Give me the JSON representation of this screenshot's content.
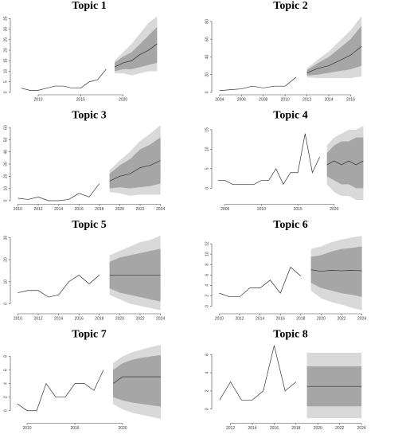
{
  "chart_data": [
    {
      "type": "forecast",
      "title": "Topic 1",
      "xlim": [
        2007,
        2025
      ],
      "xticks": [
        2010,
        2015,
        2020
      ],
      "ylim": [
        0,
        37
      ],
      "yticks": [
        0,
        5,
        10,
        15,
        20,
        25,
        30,
        35
      ],
      "line_color": "#333333",
      "band80_color": "#a6a6a6",
      "band95_color": "#d9d9d9",
      "observed": {
        "x": [
          2008,
          2009,
          2010,
          2011,
          2012,
          2013,
          2014,
          2015,
          2016,
          2017,
          2018
        ],
        "values": [
          2,
          1,
          1,
          2,
          3,
          3,
          2,
          2,
          5,
          6,
          11
        ]
      },
      "forecast": {
        "x": [
          2019,
          2020,
          2021,
          2022,
          2023,
          2024
        ],
        "mean": [
          12,
          14,
          15,
          18,
          20,
          23
        ],
        "lo80": [
          10,
          11,
          11,
          12,
          13,
          14
        ],
        "hi80": [
          14,
          17,
          19,
          23,
          27,
          31
        ],
        "lo95": [
          9,
          9,
          8,
          9,
          10,
          10
        ],
        "hi95": [
          15,
          19,
          23,
          28,
          33,
          36
        ]
      }
    },
    {
      "type": "forecast",
      "title": "Topic 2",
      "xlim": [
        2003.5,
        2017.5
      ],
      "xticks": [
        2004,
        2006,
        2008,
        2010,
        2012,
        2014,
        2016
      ],
      "ylim": [
        0,
        88
      ],
      "yticks": [
        0,
        20,
        40,
        60,
        80
      ],
      "line_color": "#333333",
      "band80_color": "#a6a6a6",
      "band95_color": "#d9d9d9",
      "observed": {
        "x": [
          2004,
          2005,
          2006,
          2007,
          2008,
          2009,
          2010,
          2011
        ],
        "values": [
          2,
          3,
          4,
          7,
          5,
          7,
          7,
          17
        ]
      },
      "forecast": {
        "x": [
          2012,
          2013,
          2014,
          2015,
          2016,
          2017
        ],
        "mean": [
          22,
          27,
          30,
          36,
          42,
          52
        ],
        "lo80": [
          19,
          20,
          22,
          24,
          26,
          30
        ],
        "hi80": [
          25,
          33,
          40,
          50,
          60,
          75
        ],
        "lo95": [
          17,
          16,
          16,
          16,
          16,
          18
        ],
        "hi95": [
          27,
          37,
          46,
          58,
          70,
          86
        ]
      }
    },
    {
      "type": "forecast",
      "title": "Topic 3",
      "xlim": [
        2009.5,
        2024.5
      ],
      "xticks": [
        2010,
        2012,
        2014,
        2016,
        2018,
        2020,
        2022,
        2024
      ],
      "ylim": [
        -1,
        63
      ],
      "yticks": [
        0,
        10,
        20,
        30,
        40,
        50,
        60
      ],
      "line_color": "#333333",
      "band80_color": "#a6a6a6",
      "band95_color": "#d9d9d9",
      "observed": {
        "x": [
          2010,
          2011,
          2012,
          2013,
          2014,
          2015,
          2016,
          2017,
          2018
        ],
        "values": [
          2,
          1,
          3,
          0,
          0,
          1,
          6,
          3,
          14
        ]
      },
      "forecast": {
        "x": [
          2019,
          2020,
          2021,
          2022,
          2023,
          2024
        ],
        "mean": [
          16,
          20,
          22,
          27,
          29,
          33
        ],
        "lo80": [
          10,
          11,
          10,
          11,
          12,
          14
        ],
        "hi80": [
          22,
          29,
          34,
          42,
          46,
          52
        ],
        "lo95": [
          7,
          6,
          4,
          5,
          5,
          5
        ],
        "hi95": [
          25,
          33,
          40,
          49,
          55,
          62
        ]
      }
    },
    {
      "type": "forecast",
      "title": "Topic 4",
      "xlim": [
        2003.5,
        2024.5
      ],
      "xticks": [
        2005,
        2010,
        2015,
        2020
      ],
      "ylim": [
        -3.5,
        16.5
      ],
      "yticks": [
        0,
        5,
        10,
        15
      ],
      "line_color": "#333333",
      "band80_color": "#a6a6a6",
      "band95_color": "#d9d9d9",
      "observed": {
        "x": [
          2004,
          2005,
          2006,
          2007,
          2008,
          2009,
          2010,
          2011,
          2012,
          2013,
          2014,
          2015,
          2016,
          2017,
          2018
        ],
        "values": [
          2,
          2,
          1,
          1,
          1,
          1,
          2,
          2,
          5,
          1,
          4,
          4,
          14,
          4,
          8
        ]
      },
      "forecast": {
        "x": [
          2019,
          2020,
          2021,
          2022,
          2023,
          2024
        ],
        "mean": [
          6,
          7,
          6,
          7,
          6,
          7
        ],
        "lo80": [
          3,
          2,
          1,
          1,
          0,
          0
        ],
        "hi80": [
          9,
          11,
          12,
          12,
          13,
          13
        ],
        "lo95": [
          1,
          -1,
          -2,
          -2,
          -3,
          -3
        ],
        "hi95": [
          11,
          13,
          14,
          15,
          15,
          16
        ]
      }
    },
    {
      "type": "forecast",
      "title": "Topic 5",
      "xlim": [
        2009.5,
        2024.5
      ],
      "xticks": [
        2010,
        2012,
        2014,
        2016,
        2018,
        2020,
        2022,
        2024
      ],
      "ylim": [
        -3.5,
        32
      ],
      "yticks": [
        0,
        10,
        20,
        30
      ],
      "line_color": "#333333",
      "band80_color": "#a6a6a6",
      "band95_color": "#d9d9d9",
      "observed": {
        "x": [
          2010,
          2011,
          2012,
          2013,
          2014,
          2015,
          2016,
          2017,
          2018
        ],
        "values": [
          5,
          6,
          6,
          3,
          4,
          10,
          13,
          9,
          13
        ]
      },
      "forecast": {
        "x": [
          2019,
          2020,
          2021,
          2022,
          2023,
          2024
        ],
        "mean": [
          13,
          13,
          13,
          13,
          13,
          13
        ],
        "lo80": [
          7,
          5,
          4,
          3,
          2,
          1
        ],
        "hi80": [
          19,
          21,
          22,
          23,
          24,
          25
        ],
        "lo95": [
          4,
          2,
          0,
          -1,
          -2,
          -3
        ],
        "hi95": [
          22,
          24,
          26,
          28,
          29,
          31
        ]
      }
    },
    {
      "type": "forecast",
      "title": "Topic 6",
      "xlim": [
        2009.5,
        2024.5
      ],
      "xticks": [
        2010,
        2012,
        2014,
        2016,
        2018,
        2020,
        2022,
        2024
      ],
      "ylim": [
        -1,
        14
      ],
      "yticks": [
        0,
        2,
        4,
        6,
        8,
        10,
        12
      ],
      "line_color": "#333333",
      "band80_color": "#a6a6a6",
      "band95_color": "#d9d9d9",
      "observed": {
        "x": [
          2010,
          2011,
          2012,
          2013,
          2014,
          2015,
          2016,
          2017,
          2018
        ],
        "values": [
          2.5,
          1.8,
          1.8,
          3.5,
          3.5,
          5,
          2.5,
          7.5,
          5.8
        ]
      },
      "forecast": {
        "x": [
          2019,
          2020,
          2021,
          2022,
          2023,
          2024
        ],
        "mean": [
          7,
          6.7,
          6.9,
          6.8,
          6.9,
          6.8
        ],
        "lo80": [
          4.5,
          3.5,
          3,
          2.5,
          2.2,
          1.8
        ],
        "hi80": [
          9.5,
          9.8,
          10.5,
          11,
          11.2,
          11.5
        ],
        "lo95": [
          3,
          1.5,
          0.8,
          0.3,
          -0.3,
          -0.8
        ],
        "hi95": [
          11,
          11.5,
          12.3,
          12.8,
          13.2,
          13.5
        ]
      }
    },
    {
      "type": "forecast",
      "title": "Topic 7",
      "xlim": [
        2008.5,
        2024.5
      ],
      "xticks": [
        2010,
        2015,
        2020
      ],
      "ylim": [
        -1.5,
        10
      ],
      "yticks": [
        0,
        2,
        4,
        6,
        8
      ],
      "line_color": "#333333",
      "band80_color": "#a6a6a6",
      "band95_color": "#d9d9d9",
      "observed": {
        "x": [
          2009,
          2010,
          2011,
          2012,
          2013,
          2014,
          2015,
          2016,
          2017,
          2018
        ],
        "values": [
          1,
          0,
          0,
          4,
          2,
          2,
          4,
          4,
          3,
          6
        ]
      },
      "forecast": {
        "x": [
          2019,
          2020,
          2021,
          2022,
          2023,
          2024
        ],
        "mean": [
          4,
          5,
          5,
          5,
          5,
          5
        ],
        "lo80": [
          2,
          1.5,
          1.2,
          1,
          0.8,
          0.6
        ],
        "hi80": [
          6,
          7,
          7.5,
          7.8,
          8,
          8.2
        ],
        "lo95": [
          1,
          0.2,
          -0.3,
          -0.6,
          -0.9,
          -1.2
        ],
        "hi95": [
          7,
          8,
          8.6,
          9,
          9.4,
          9.7
        ]
      }
    },
    {
      "type": "forecast",
      "title": "Topic 8",
      "xlim": [
        2010.5,
        2024.5
      ],
      "xticks": [
        2012,
        2014,
        2016,
        2018,
        2020,
        2022,
        2024
      ],
      "ylim": [
        -1.3,
        7.3
      ],
      "yticks": [
        0,
        2,
        4,
        6
      ],
      "line_color": "#333333",
      "band80_color": "#a6a6a6",
      "band95_color": "#d9d9d9",
      "observed": {
        "x": [
          2011,
          2012,
          2013,
          2014,
          2015,
          2016,
          2017,
          2018
        ],
        "values": [
          1,
          3,
          1,
          1,
          2,
          7,
          2,
          3
        ]
      },
      "forecast": {
        "x": [
          2019,
          2020,
          2021,
          2022,
          2023,
          2024
        ],
        "mean": [
          2.5,
          2.5,
          2.5,
          2.5,
          2.5,
          2.5
        ],
        "lo80": [
          0.3,
          0.3,
          0.3,
          0.3,
          0.3,
          0.3
        ],
        "hi80": [
          4.7,
          4.7,
          4.7,
          4.7,
          4.7,
          4.7
        ],
        "lo95": [
          -1,
          -1,
          -1,
          -1,
          -1,
          -1
        ],
        "hi95": [
          6.2,
          6.2,
          6.2,
          6.2,
          6.2,
          6.2
        ]
      }
    }
  ]
}
